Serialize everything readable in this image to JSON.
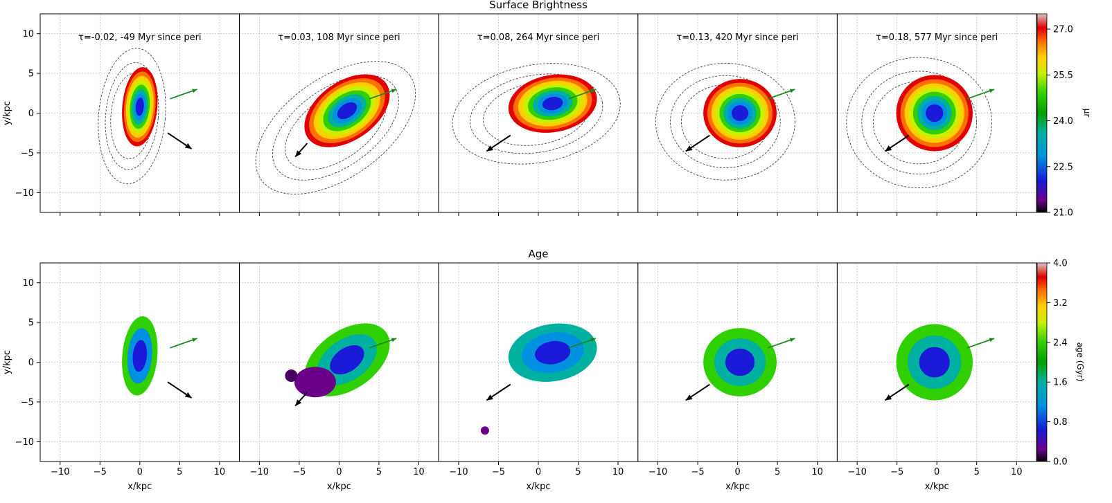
{
  "figure": {
    "row_titles": [
      "Surface Brightness",
      "Age"
    ],
    "xlabel": "x/kpc",
    "ylabel": "y/kpc"
  },
  "chart_data": [
    {
      "type": "heatmap",
      "title": "Surface Brightness",
      "panels": [
        {
          "label": "τ=-0.02, -49 Myr since peri",
          "tau": -0.02,
          "myr_since_peri": -49
        },
        {
          "label": "τ=0.03, 108 Myr since peri",
          "tau": 0.03,
          "myr_since_peri": 108
        },
        {
          "label": "τ=0.08, 264 Myr since peri",
          "tau": 0.08,
          "myr_since_peri": 264
        },
        {
          "label": "τ=0.13, 420 Myr since peri",
          "tau": 0.13,
          "myr_since_peri": 420
        },
        {
          "label": "τ=0.18, 577 Myr since peri",
          "tau": 0.18,
          "myr_since_peri": 577
        }
      ],
      "xlabel": "",
      "ylabel": "y/kpc",
      "xlim": [
        -12.5,
        12.5
      ],
      "ylim": [
        -12.5,
        12.5
      ],
      "xticks": [
        -10,
        -5,
        0,
        5,
        10
      ],
      "yticks": [
        -10,
        -5,
        0,
        5,
        10
      ],
      "grid": true,
      "colorbar": {
        "label": "μr",
        "range": [
          21.0,
          27.5
        ],
        "ticks": [
          "21.0",
          "22.5",
          "24.0",
          "25.5",
          "27.0"
        ]
      }
    },
    {
      "type": "heatmap",
      "title": "Age",
      "xlabel": "x/kpc",
      "ylabel": "y/kpc",
      "xlim": [
        -12.5,
        12.5
      ],
      "ylim": [
        -12.5,
        12.5
      ],
      "xticks": [
        -10,
        -5,
        0,
        5,
        10
      ],
      "yticks": [
        -10,
        -5,
        0,
        5,
        10
      ],
      "grid": true,
      "colorbar": {
        "label": "age (Gyr)",
        "range": [
          0.0,
          4.0
        ],
        "ticks": [
          "0.0",
          "0.8",
          "1.6",
          "2.4",
          "3.2",
          "4.0"
        ]
      }
    }
  ],
  "colors": {
    "velocity_arrow": "#000000",
    "direction_arrow": "#1a8a1a",
    "contour": "#444444",
    "grid": "#b0b0b0"
  }
}
